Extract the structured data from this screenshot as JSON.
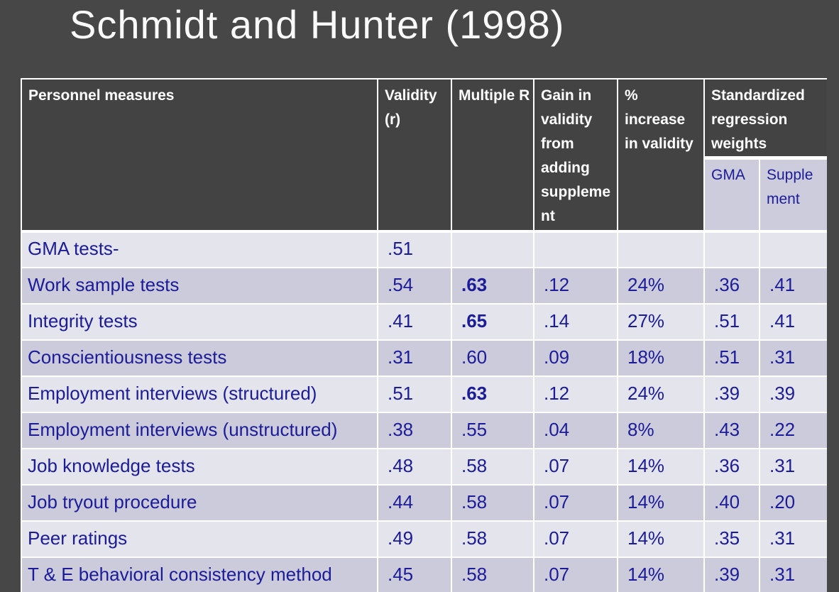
{
  "slide": {
    "title": "Schmidt and Hunter (1998)"
  },
  "colors": {
    "slide_background": "#474747",
    "header_cell_background": "#434343",
    "header_text": "#ffffff",
    "row_light": "#e4e4ed",
    "row_dark": "#cbcbdb",
    "subheader_background": "#ccccdd",
    "table_text": "#1c1c99",
    "grid_border": "#ffffff"
  },
  "table": {
    "headers": {
      "measures": "Personnel measures",
      "validity": "Validity (r)",
      "multiple_r": "Multiple R",
      "gain": "Gain in validity from adding supplement",
      "increase": "% increase in validity",
      "std_weights": "Standardized regression weights",
      "gma": "GMA",
      "supplement": "Supplement"
    },
    "rows": [
      {
        "measure": "GMA tests-",
        "validity": ".51",
        "multiple_r": "",
        "multiple_r_bold": false,
        "gain": "",
        "increase": "",
        "gma": "",
        "supplement": ""
      },
      {
        "measure": "Work sample tests",
        "validity": ".54",
        "multiple_r": ".63",
        "multiple_r_bold": true,
        "gain": ".12",
        "increase": "24%",
        "gma": ".36",
        "supplement": ".41"
      },
      {
        "measure": "Integrity tests",
        "validity": ".41",
        "multiple_r": ".65",
        "multiple_r_bold": true,
        "gain": ".14",
        "increase": "27%",
        "gma": ".51",
        "supplement": ".41"
      },
      {
        "measure": "Conscientiousness tests",
        "validity": ".31",
        "multiple_r": ".60",
        "multiple_r_bold": false,
        "gain": ".09",
        "increase": "18%",
        "gma": ".51",
        "supplement": ".31"
      },
      {
        "measure": "Employment interviews (structured)",
        "validity": ".51",
        "multiple_r": ".63",
        "multiple_r_bold": true,
        "gain": ".12",
        "increase": "24%",
        "gma": ".39",
        "supplement": ".39"
      },
      {
        "measure": "Employment interviews (unstructured)",
        "validity": ".38",
        "multiple_r": ".55",
        "multiple_r_bold": false,
        "gain": ".04",
        "increase": "8%",
        "gma": ".43",
        "supplement": ".22"
      },
      {
        "measure": "Job knowledge tests",
        "validity": ".48",
        "multiple_r": ".58",
        "multiple_r_bold": false,
        "gain": ".07",
        "increase": "14%",
        "gma": ".36",
        "supplement": ".31"
      },
      {
        "measure": "Job tryout procedure",
        "validity": ".44",
        "multiple_r": ".58",
        "multiple_r_bold": false,
        "gain": ".07",
        "increase": "14%",
        "gma": ".40",
        "supplement": ".20"
      },
      {
        "measure": "Peer ratings",
        "validity": ".49",
        "multiple_r": ".58",
        "multiple_r_bold": false,
        "gain": ".07",
        "increase": "14%",
        "gma": ".35",
        "supplement": ".31"
      },
      {
        "measure": "T & E behavioral consistency method",
        "validity": ".45",
        "multiple_r": ".58",
        "multiple_r_bold": false,
        "gain": ".07",
        "increase": "14%",
        "gma": ".39",
        "supplement": ".31"
      }
    ]
  }
}
